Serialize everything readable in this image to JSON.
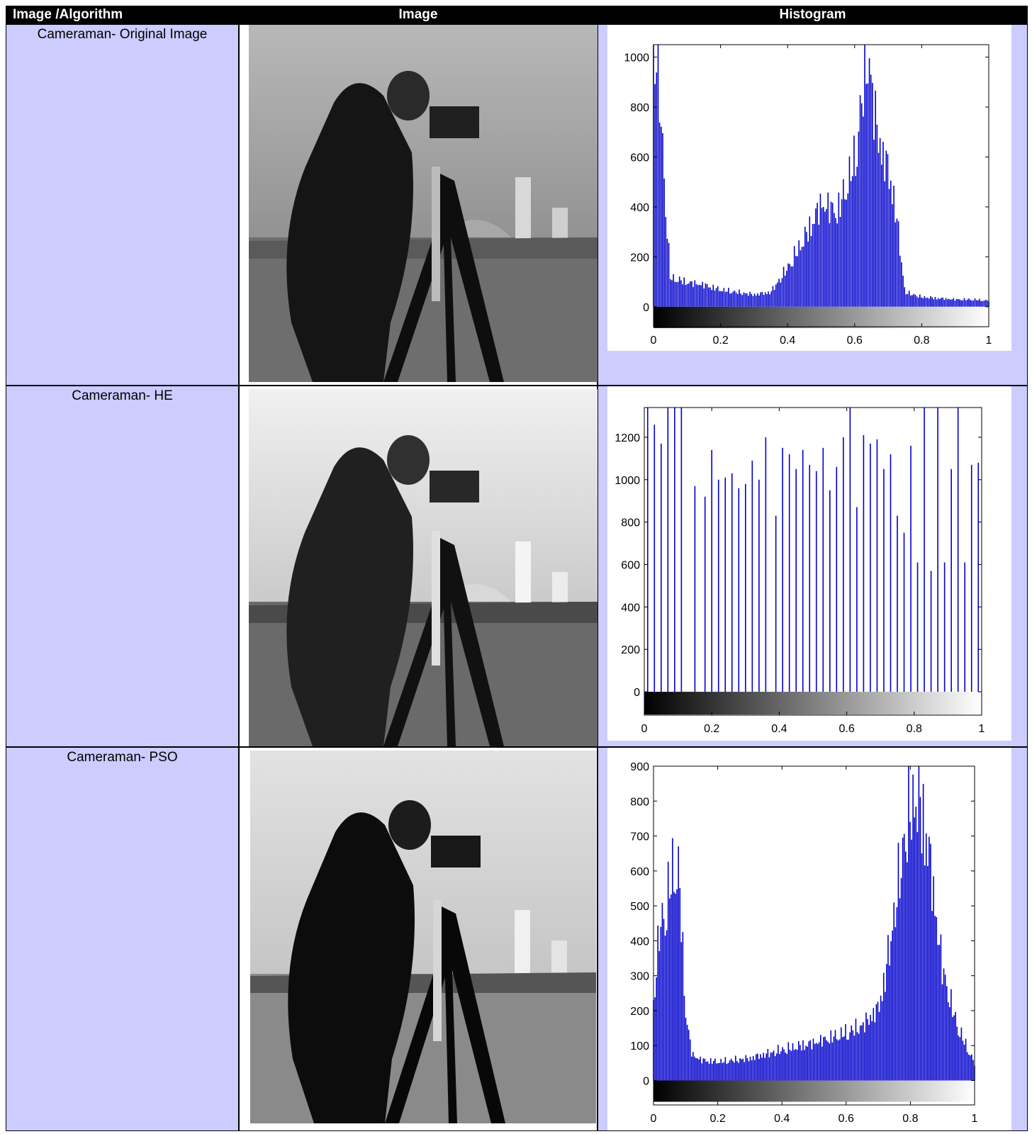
{
  "headers": [
    "Image /Algorithm",
    "Image",
    "Histogram"
  ],
  "rows": [
    {
      "label": "Cameraman- Original Image",
      "chart": {
        "type": "bar",
        "ytick_labels": [
          "0",
          "200",
          "400",
          "600",
          "800",
          "1000"
        ],
        "xtick_labels": [
          "0",
          "0.2",
          "0.4",
          "0.6",
          "0.8",
          "1"
        ],
        "ylim": [
          -80,
          1050
        ],
        "xlim": [
          0,
          1
        ],
        "bar_color": "#0000cc"
      }
    },
    {
      "label": "Cameraman-  HE",
      "chart": {
        "type": "bar",
        "ytick_labels": [
          "0",
          "200",
          "400",
          "600",
          "800",
          "1000",
          "1200"
        ],
        "xtick_labels": [
          "0",
          "0.2",
          "0.4",
          "0.6",
          "0.8",
          "1"
        ],
        "ylim": [
          -110,
          1340
        ],
        "xlim": [
          0,
          1
        ],
        "bar_color": "#0000cc"
      }
    },
    {
      "label": "Cameraman-  PSO",
      "chart": {
        "type": "bar",
        "ytick_labels": [
          "0",
          "100",
          "200",
          "300",
          "400",
          "500",
          "600",
          "700",
          "800",
          "900"
        ],
        "xtick_labels": [
          "0",
          "0.2",
          "0.4",
          "0.6",
          "0.8",
          "1"
        ],
        "ylim": [
          -70,
          900
        ],
        "xlim": [
          0,
          1
        ],
        "bar_color": "#0000cc"
      }
    }
  ],
  "chart_data": [
    {
      "type": "bar",
      "x": [
        0.01,
        0.05,
        0.1,
        0.15,
        0.2,
        0.25,
        0.3,
        0.35,
        0.4,
        0.45,
        0.5,
        0.55,
        0.6,
        0.62,
        0.64,
        0.66,
        0.68,
        0.7,
        0.72,
        0.75,
        0.8,
        0.85,
        0.9,
        0.95,
        1.0
      ],
      "values": [
        1050,
        120,
        100,
        90,
        70,
        60,
        50,
        60,
        160,
        280,
        420,
        390,
        600,
        830,
        1050,
        780,
        640,
        560,
        430,
        60,
        40,
        35,
        30,
        30,
        25
      ],
      "xlim": [
        0,
        1
      ],
      "ylim": [
        -80,
        1050
      ]
    },
    {
      "type": "bar",
      "x": [
        0.0,
        0.02,
        0.04,
        0.06,
        0.08,
        0.1,
        0.14,
        0.17,
        0.19,
        0.21,
        0.23,
        0.25,
        0.27,
        0.29,
        0.31,
        0.33,
        0.35,
        0.38,
        0.4,
        0.42,
        0.44,
        0.46,
        0.48,
        0.5,
        0.52,
        0.54,
        0.56,
        0.58,
        0.6,
        0.62,
        0.64,
        0.66,
        0.68,
        0.7,
        0.72,
        0.74,
        0.76,
        0.78,
        0.8,
        0.82,
        0.84,
        0.86,
        0.88,
        0.9,
        0.92,
        0.94,
        0.96,
        0.98
      ],
      "values": [
        1340,
        1260,
        1170,
        1340,
        1340,
        1340,
        970,
        920,
        1140,
        1000,
        1010,
        1030,
        960,
        980,
        1090,
        1000,
        1200,
        830,
        1150,
        1120,
        1050,
        1140,
        1070,
        1040,
        1150,
        950,
        1060,
        1200,
        1340,
        870,
        1210,
        1170,
        1190,
        1050,
        1120,
        830,
        750,
        1160,
        610,
        1340,
        570,
        1340,
        610,
        1050,
        1340,
        610,
        1070,
        1080
      ],
      "xlim": [
        0,
        1
      ],
      "ylim": [
        -110,
        1340
      ]
    },
    {
      "type": "bar",
      "x": [
        0.0,
        0.02,
        0.04,
        0.06,
        0.08,
        0.1,
        0.12,
        0.15,
        0.2,
        0.3,
        0.4,
        0.5,
        0.6,
        0.65,
        0.7,
        0.72,
        0.74,
        0.76,
        0.78,
        0.8,
        0.82,
        0.84,
        0.86,
        0.88,
        0.9,
        0.92,
        0.94,
        0.96,
        0.98,
        1.0
      ],
      "values": [
        230,
        450,
        510,
        620,
        600,
        200,
        75,
        60,
        55,
        65,
        90,
        110,
        140,
        160,
        210,
        300,
        420,
        560,
        700,
        800,
        830,
        780,
        650,
        480,
        330,
        250,
        180,
        130,
        90,
        50
      ],
      "xlim": [
        0,
        1
      ],
      "ylim": [
        -70,
        900
      ]
    }
  ]
}
